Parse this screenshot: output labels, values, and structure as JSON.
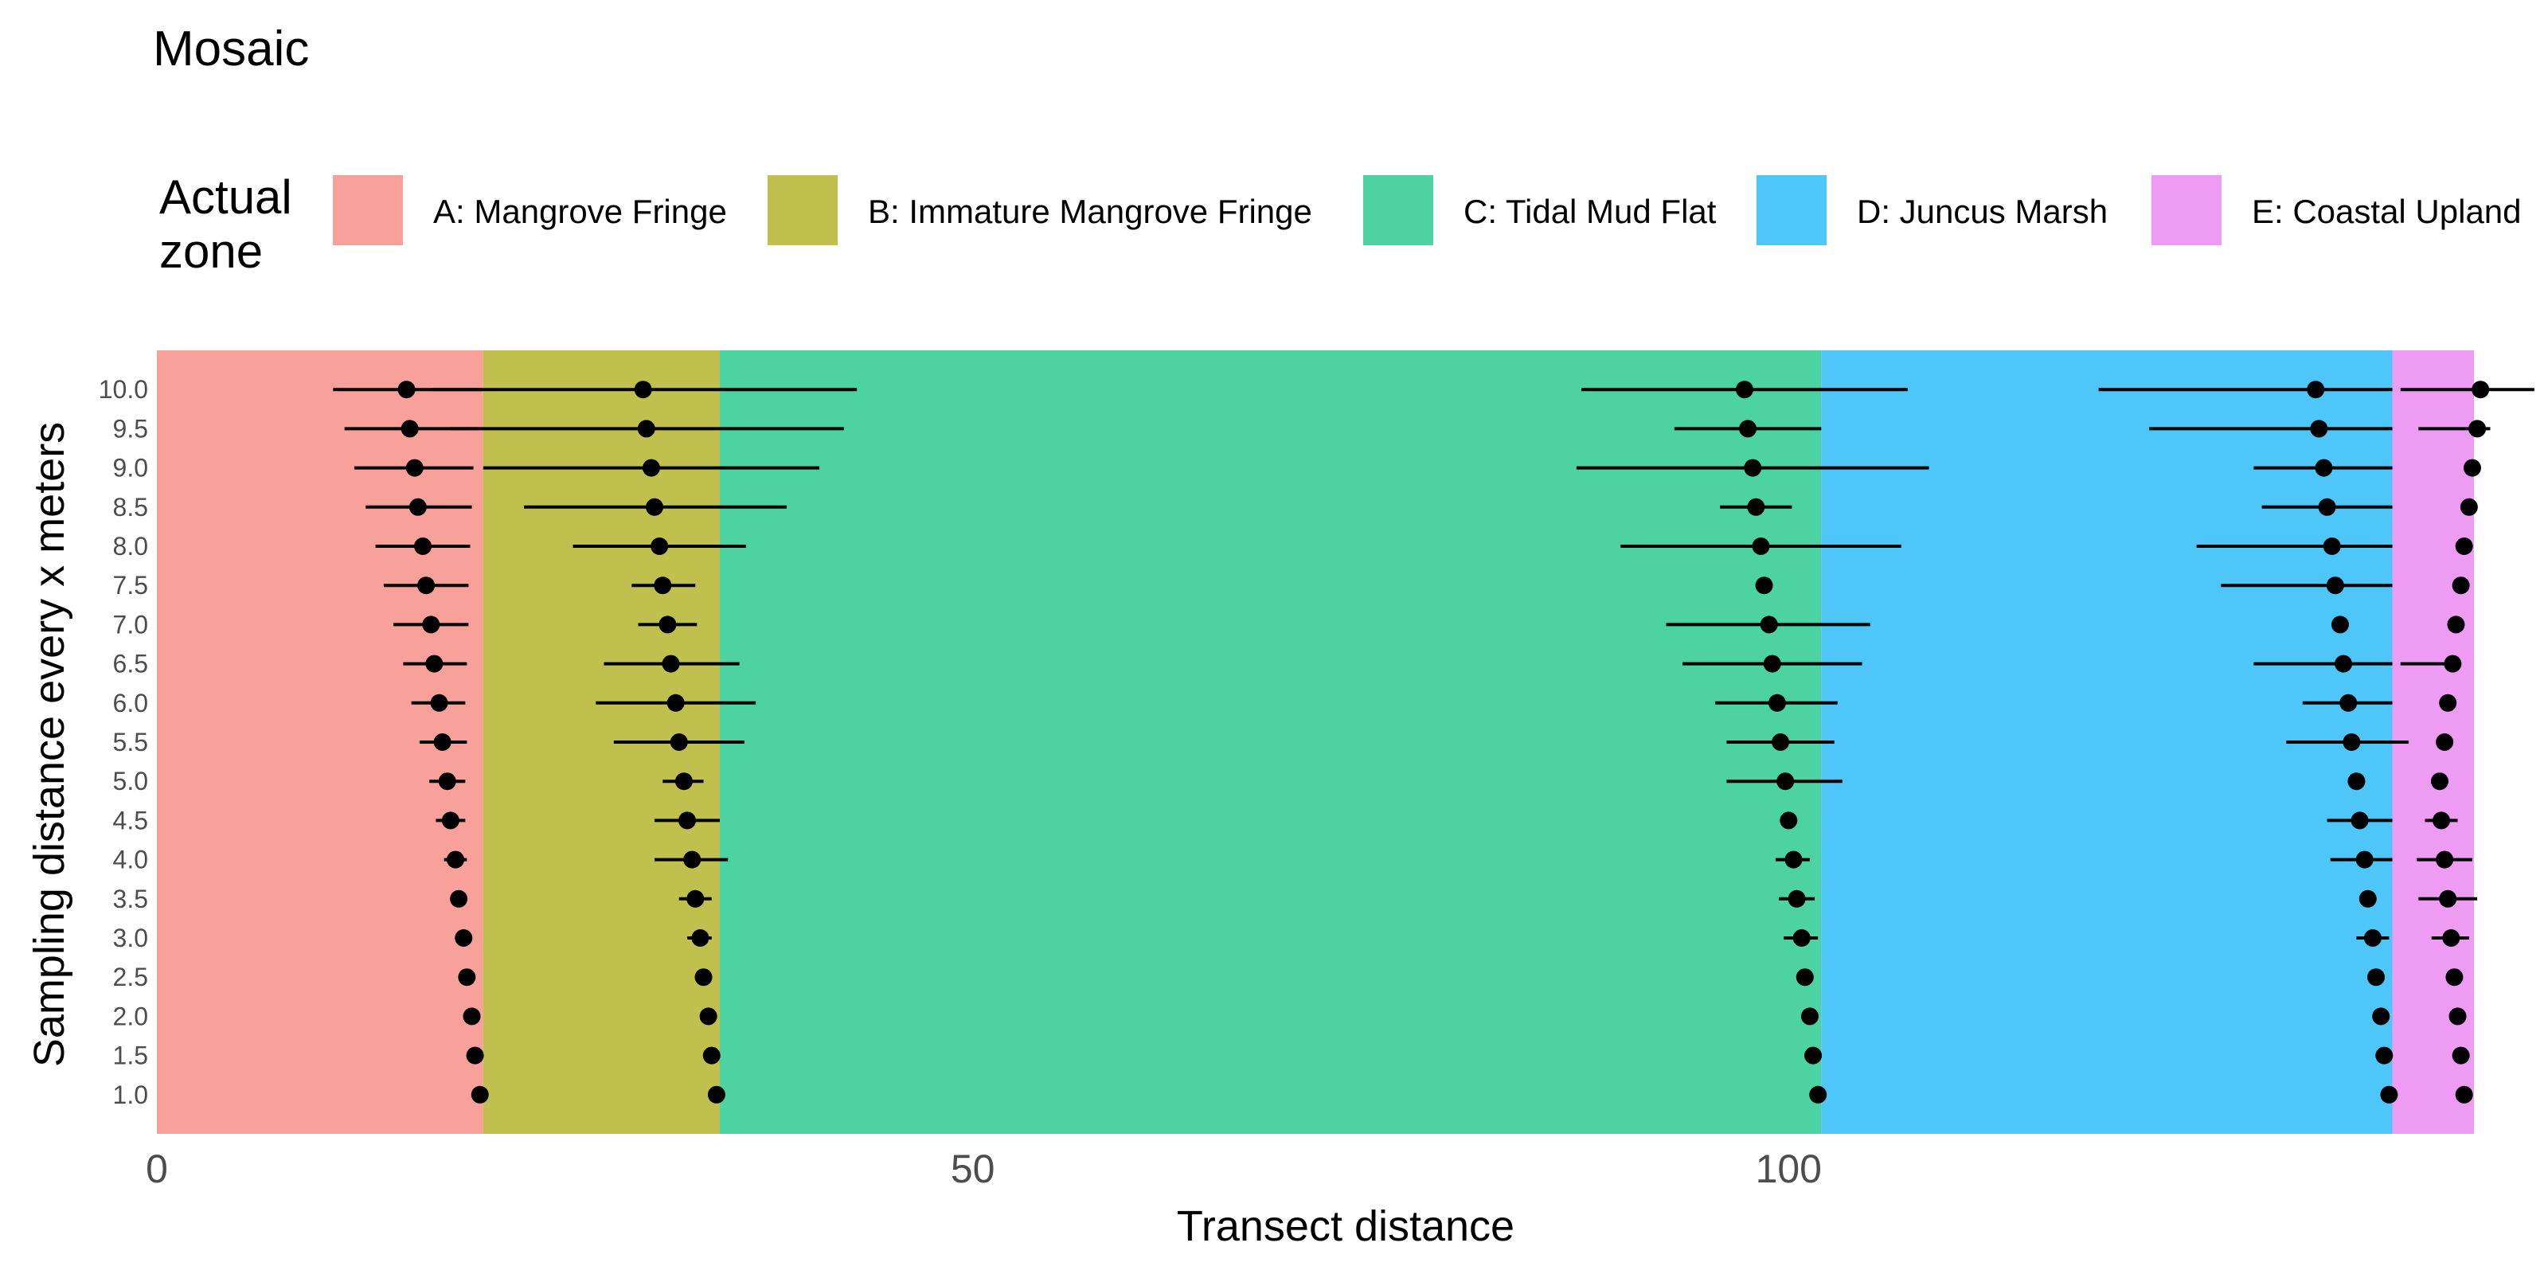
{
  "chart_data": {
    "type": "scatter",
    "title": "Mosaic",
    "xlabel": "Transect distance",
    "ylabel": "Sampling distance every x meters",
    "xlim": [
      0,
      142
    ],
    "ylim": [
      0.5,
      10.5
    ],
    "x_ticks": [
      "0",
      "50",
      "100"
    ],
    "x_tick_values": [
      0,
      50,
      100
    ],
    "y_tick_values": [
      1.0,
      1.5,
      2.0,
      2.5,
      3.0,
      3.5,
      4.0,
      4.5,
      5.0,
      5.5,
      6.0,
      6.5,
      7.0,
      7.5,
      8.0,
      8.5,
      9.0,
      9.5,
      10.0
    ],
    "y_ticks": [
      "1.0",
      "1.5",
      "2.0",
      "2.5",
      "3.0",
      "3.5",
      "4.0",
      "4.5",
      "5.0",
      "5.5",
      "6.0",
      "6.5",
      "7.0",
      "7.5",
      "8.0",
      "8.5",
      "9.0",
      "9.5",
      "10.0"
    ],
    "grid": false,
    "legend": {
      "title": "Actual\nzone",
      "position": "top",
      "entries": [
        {
          "label": "A: Mangrove Fringe",
          "color": "#F8A09A"
        },
        {
          "label": "B: Immature Mangrove Fringe",
          "color": "#C0C04E"
        },
        {
          "label": "C: Tidal Mud Flat",
          "color": "#4DD2A2"
        },
        {
          "label": "D: Juncus Marsh",
          "color": "#4EC6F8"
        },
        {
          "label": "E: Coastal Upland",
          "color": "#EE9BF3"
        }
      ]
    },
    "zones": [
      {
        "label": "A: Mangrove Fringe",
        "start": 0,
        "end": 20,
        "color": "#F8A09A"
      },
      {
        "label": "B: Immature Mangrove Fringe",
        "start": 20,
        "end": 34.5,
        "color": "#C0C04E"
      },
      {
        "label": "C: Tidal Mud Flat",
        "start": 34.5,
        "end": 102,
        "color": "#4DD2A2"
      },
      {
        "label": "D: Juncus Marsh",
        "start": 102,
        "end": 137,
        "color": "#4EC6F8"
      },
      {
        "label": "E: Coastal Upland",
        "start": 137,
        "end": 142,
        "color": "#EE9BF3"
      }
    ],
    "series": [
      {
        "points": [
          {
            "y": 10.0,
            "x": 15.3,
            "lo": 10.8,
            "hi": 19.9
          },
          {
            "y": 9.5,
            "x": 15.5,
            "lo": 11.5,
            "hi": 19.7
          },
          {
            "y": 9.0,
            "x": 15.8,
            "lo": 12.1,
            "hi": 19.4
          },
          {
            "y": 8.5,
            "x": 16.0,
            "lo": 12.8,
            "hi": 19.3
          },
          {
            "y": 8.0,
            "x": 16.3,
            "lo": 13.4,
            "hi": 19.2
          },
          {
            "y": 7.5,
            "x": 16.5,
            "lo": 13.9,
            "hi": 19.1
          },
          {
            "y": 7.0,
            "x": 16.8,
            "lo": 14.5,
            "hi": 19.1
          },
          {
            "y": 6.5,
            "x": 17.0,
            "lo": 15.1,
            "hi": 19.0
          },
          {
            "y": 6.0,
            "x": 17.3,
            "lo": 15.6,
            "hi": 18.9
          },
          {
            "y": 5.5,
            "x": 17.5,
            "lo": 16.1,
            "hi": 19.0
          },
          {
            "y": 5.0,
            "x": 17.8,
            "lo": 16.7,
            "hi": 18.9
          },
          {
            "y": 4.5,
            "x": 18.0,
            "lo": 17.1,
            "hi": 18.9
          },
          {
            "y": 4.0,
            "x": 18.3,
            "lo": 17.6,
            "hi": 19.0
          },
          {
            "y": 3.5,
            "x": 18.5,
            "lo": 18.0,
            "hi": 19.0
          },
          {
            "y": 3.0,
            "x": 18.8,
            "lo": 18.4,
            "hi": 19.1
          },
          {
            "y": 2.5,
            "x": 19.0,
            "lo": 18.7,
            "hi": 19.3
          },
          {
            "y": 2.0,
            "x": 19.3,
            "lo": 19.0,
            "hi": 19.5
          },
          {
            "y": 1.5,
            "x": 19.5,
            "lo": 19.3,
            "hi": 19.7
          },
          {
            "y": 1.0,
            "x": 19.8,
            "lo": 19.6,
            "hi": 20.0
          }
        ]
      },
      {
        "points": [
          {
            "y": 10.0,
            "x": 29.8,
            "lo": 16.8,
            "hi": 42.9
          },
          {
            "y": 9.5,
            "x": 30.0,
            "lo": 18.0,
            "hi": 42.1
          },
          {
            "y": 9.0,
            "x": 30.3,
            "lo": 20.0,
            "hi": 40.6
          },
          {
            "y": 8.5,
            "x": 30.5,
            "lo": 22.5,
            "hi": 38.6
          },
          {
            "y": 8.0,
            "x": 30.8,
            "lo": 25.5,
            "hi": 36.1
          },
          {
            "y": 7.5,
            "x": 31.0,
            "lo": 29.1,
            "hi": 33.0
          },
          {
            "y": 7.0,
            "x": 31.3,
            "lo": 29.5,
            "hi": 33.1
          },
          {
            "y": 6.5,
            "x": 31.5,
            "lo": 27.4,
            "hi": 35.7
          },
          {
            "y": 6.0,
            "x": 31.8,
            "lo": 26.9,
            "hi": 36.7
          },
          {
            "y": 5.5,
            "x": 32.0,
            "lo": 28.0,
            "hi": 36.0
          },
          {
            "y": 5.0,
            "x": 32.3,
            "lo": 31.0,
            "hi": 33.5
          },
          {
            "y": 4.5,
            "x": 32.5,
            "lo": 30.5,
            "hi": 34.5
          },
          {
            "y": 4.0,
            "x": 32.8,
            "lo": 30.5,
            "hi": 35.0
          },
          {
            "y": 3.5,
            "x": 33.0,
            "lo": 32.0,
            "hi": 34.0
          },
          {
            "y": 3.0,
            "x": 33.3,
            "lo": 32.5,
            "hi": 34.0
          },
          {
            "y": 2.5,
            "x": 33.5,
            "lo": 33.0,
            "hi": 34.0
          },
          {
            "y": 2.0,
            "x": 33.8,
            "lo": 33.5,
            "hi": 34.1
          },
          {
            "y": 1.5,
            "x": 34.0,
            "lo": 33.8,
            "hi": 34.3
          },
          {
            "y": 1.0,
            "x": 34.3,
            "lo": 34.0,
            "hi": 34.5
          }
        ]
      },
      {
        "points": [
          {
            "y": 10.0,
            "x": 97.3,
            "lo": 87.3,
            "hi": 107.3
          },
          {
            "y": 9.5,
            "x": 97.5,
            "lo": 93.0,
            "hi": 102.0
          },
          {
            "y": 9.0,
            "x": 97.8,
            "lo": 87.0,
            "hi": 108.6
          },
          {
            "y": 8.5,
            "x": 98.0,
            "lo": 95.8,
            "hi": 100.2
          },
          {
            "y": 8.0,
            "x": 98.3,
            "lo": 89.7,
            "hi": 106.9
          },
          {
            "y": 7.5,
            "x": 98.5,
            "lo": 98.4,
            "hi": 98.6
          },
          {
            "y": 7.0,
            "x": 98.8,
            "lo": 92.5,
            "hi": 105.0
          },
          {
            "y": 6.5,
            "x": 99.0,
            "lo": 93.5,
            "hi": 104.5
          },
          {
            "y": 6.0,
            "x": 99.3,
            "lo": 95.5,
            "hi": 103.0
          },
          {
            "y": 5.5,
            "x": 99.5,
            "lo": 96.2,
            "hi": 102.8
          },
          {
            "y": 5.0,
            "x": 99.8,
            "lo": 96.2,
            "hi": 103.3
          },
          {
            "y": 4.5,
            "x": 100.0,
            "lo": 99.9,
            "hi": 100.1
          },
          {
            "y": 4.0,
            "x": 100.3,
            "lo": 99.2,
            "hi": 101.3
          },
          {
            "y": 3.5,
            "x": 100.5,
            "lo": 99.4,
            "hi": 101.6
          },
          {
            "y": 3.0,
            "x": 100.8,
            "lo": 99.7,
            "hi": 101.8
          },
          {
            "y": 2.5,
            "x": 101.0,
            "lo": 100.9,
            "hi": 101.1
          },
          {
            "y": 2.0,
            "x": 101.3,
            "lo": 101.2,
            "hi": 101.4
          },
          {
            "y": 1.5,
            "x": 101.5,
            "lo": 101.4,
            "hi": 101.6
          },
          {
            "y": 1.0,
            "x": 101.8,
            "lo": 101.7,
            "hi": 101.9
          }
        ]
      },
      {
        "points": [
          {
            "y": 10.0,
            "x": 132.3,
            "lo": 119.0,
            "hi": 137.0
          },
          {
            "y": 9.5,
            "x": 132.5,
            "lo": 122.1,
            "hi": 137.0
          },
          {
            "y": 9.0,
            "x": 132.8,
            "lo": 128.5,
            "hi": 137.0
          },
          {
            "y": 8.5,
            "x": 133.0,
            "lo": 129.0,
            "hi": 137.0
          },
          {
            "y": 8.0,
            "x": 133.3,
            "lo": 125.0,
            "hi": 137.0
          },
          {
            "y": 7.5,
            "x": 133.5,
            "lo": 126.5,
            "hi": 137.0
          },
          {
            "y": 7.0,
            "x": 133.8,
            "lo": 133.7,
            "hi": 133.9
          },
          {
            "y": 6.5,
            "x": 134.0,
            "lo": 128.5,
            "hi": 137.0
          },
          {
            "y": 6.0,
            "x": 134.3,
            "lo": 131.5,
            "hi": 137.0
          },
          {
            "y": 5.5,
            "x": 134.5,
            "lo": 130.5,
            "hi": 138.0
          },
          {
            "y": 5.0,
            "x": 134.8,
            "lo": 134.7,
            "hi": 134.9
          },
          {
            "y": 4.5,
            "x": 135.0,
            "lo": 133.0,
            "hi": 137.0
          },
          {
            "y": 4.0,
            "x": 135.3,
            "lo": 133.2,
            "hi": 137.0
          },
          {
            "y": 3.5,
            "x": 135.5,
            "lo": 135.4,
            "hi": 135.6
          },
          {
            "y": 3.0,
            "x": 135.8,
            "lo": 134.8,
            "hi": 136.8
          },
          {
            "y": 2.5,
            "x": 136.0,
            "lo": 135.9,
            "hi": 136.1
          },
          {
            "y": 2.0,
            "x": 136.3,
            "lo": 135.8,
            "hi": 136.8
          },
          {
            "y": 1.5,
            "x": 136.5,
            "lo": 136.4,
            "hi": 136.6
          },
          {
            "y": 1.0,
            "x": 136.8,
            "lo": 136.7,
            "hi": 136.9
          }
        ]
      },
      {
        "points": [
          {
            "y": 10.0,
            "x": 142.4,
            "lo": 137.5,
            "hi": 145.7
          },
          {
            "y": 9.5,
            "x": 142.2,
            "lo": 138.6,
            "hi": 143.0
          },
          {
            "y": 9.0,
            "x": 141.9,
            "lo": 141.8,
            "hi": 142.0
          },
          {
            "y": 8.5,
            "x": 141.7,
            "lo": 141.6,
            "hi": 141.8
          },
          {
            "y": 8.0,
            "x": 141.4,
            "lo": 141.3,
            "hi": 141.5
          },
          {
            "y": 7.5,
            "x": 141.2,
            "lo": 141.1,
            "hi": 141.3
          },
          {
            "y": 7.0,
            "x": 140.9,
            "lo": 140.8,
            "hi": 141.0
          },
          {
            "y": 6.5,
            "x": 140.7,
            "lo": 137.5,
            "hi": 140.8
          },
          {
            "y": 6.0,
            "x": 140.4,
            "lo": 140.3,
            "hi": 140.5
          },
          {
            "y": 5.5,
            "x": 140.2,
            "lo": 140.1,
            "hi": 140.3
          },
          {
            "y": 5.0,
            "x": 139.9,
            "lo": 139.8,
            "hi": 140.0
          },
          {
            "y": 4.5,
            "x": 140.0,
            "lo": 139.0,
            "hi": 141.0
          },
          {
            "y": 4.0,
            "x": 140.2,
            "lo": 138.5,
            "hi": 141.9
          },
          {
            "y": 3.5,
            "x": 140.4,
            "lo": 138.6,
            "hi": 142.2
          },
          {
            "y": 3.0,
            "x": 140.6,
            "lo": 139.4,
            "hi": 141.7
          },
          {
            "y": 2.5,
            "x": 140.8,
            "lo": 140.7,
            "hi": 140.9
          },
          {
            "y": 2.0,
            "x": 141.0,
            "lo": 140.5,
            "hi": 141.5
          },
          {
            "y": 1.5,
            "x": 141.2,
            "lo": 141.1,
            "hi": 141.3
          },
          {
            "y": 1.0,
            "x": 141.4,
            "lo": 141.3,
            "hi": 141.5
          }
        ]
      }
    ]
  }
}
